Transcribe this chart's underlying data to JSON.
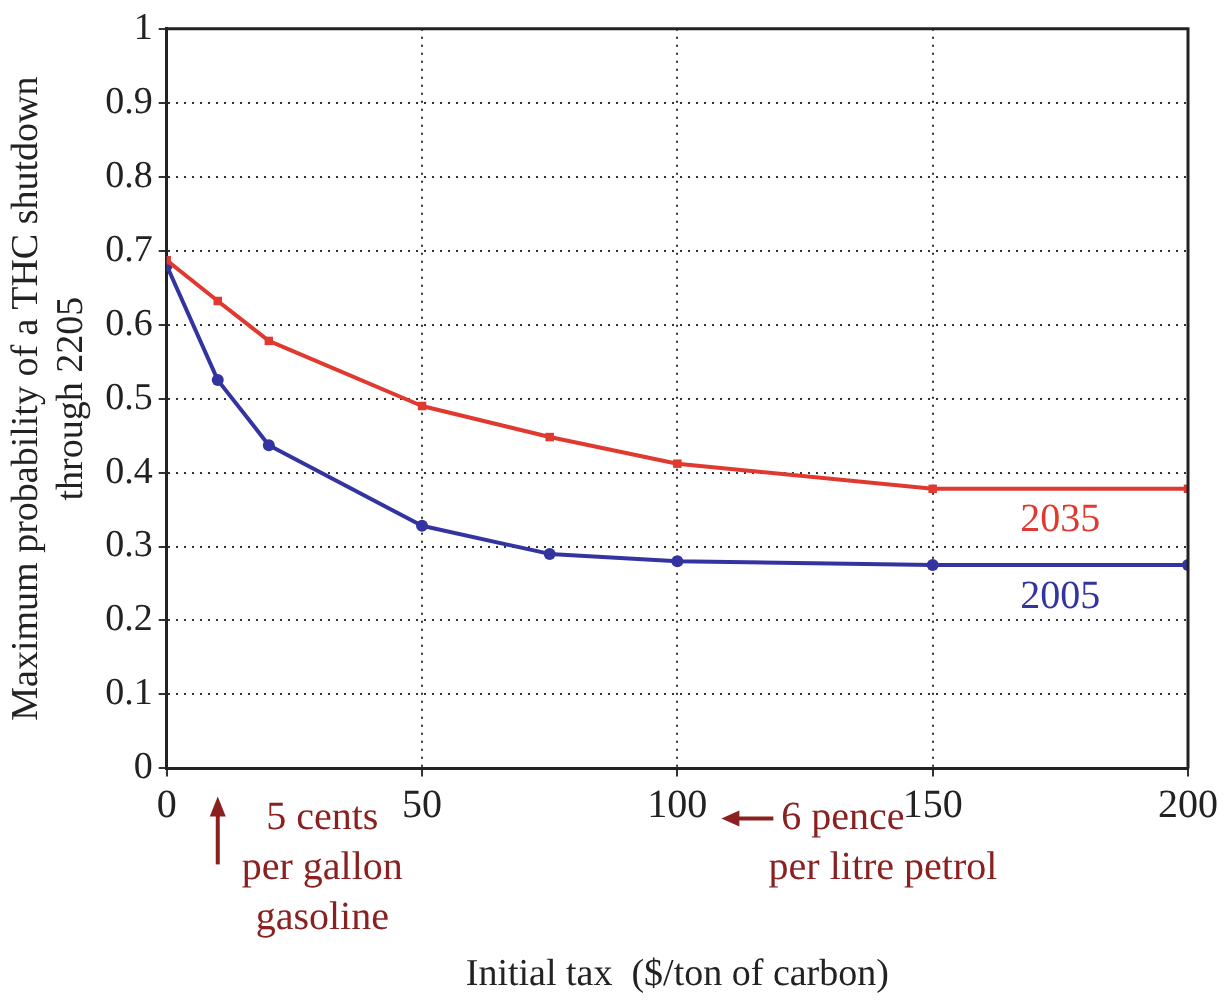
{
  "chart_data": {
    "type": "line",
    "xlabel": "Initial tax  ($/ton of carbon)",
    "ylabel": "Maximum probability of a THC shutdown\nthrough 2205",
    "x": [
      0,
      10,
      20,
      50,
      75,
      100,
      150,
      200
    ],
    "series": [
      {
        "name": "2035",
        "color": "#e03a30",
        "marker": "square",
        "values": [
          0.687,
          0.632,
          0.578,
          0.49,
          0.448,
          0.412,
          0.378,
          0.378
        ]
      },
      {
        "name": "2005",
        "color": "#3434a0",
        "marker": "circle",
        "values": [
          0.68,
          0.525,
          0.437,
          0.328,
          0.29,
          0.28,
          0.275,
          0.275
        ]
      }
    ],
    "xlim": [
      0,
      200
    ],
    "xticks": [
      0,
      50,
      100,
      150,
      200
    ],
    "ylim": [
      0,
      1
    ],
    "yticks": [
      0,
      0.1,
      0.2,
      0.3,
      0.4,
      0.5,
      0.6,
      0.7,
      0.8,
      0.9,
      1
    ],
    "grid": true,
    "line_style": "solid",
    "annotations": [
      "5 cents\nper gallon\ngasoline",
      "6 pence\nper litre petrol"
    ]
  }
}
